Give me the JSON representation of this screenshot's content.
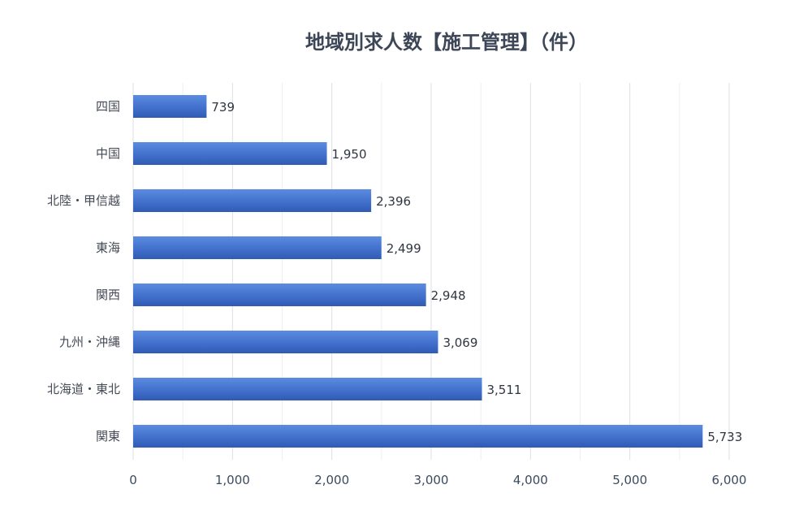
{
  "chart_data": {
    "type": "bar",
    "orientation": "horizontal",
    "title": "地域別求人数【施工管理】（件）",
    "xlabel": "",
    "ylabel": "",
    "categories": [
      "四国",
      "中国",
      "北陸・甲信越",
      "東海",
      "関西",
      "九州・沖縄",
      "北海道・東北",
      "関東"
    ],
    "values": [
      739,
      1950,
      2396,
      2499,
      2948,
      3069,
      3511,
      5733
    ],
    "data_labels": [
      "739",
      "1,950",
      "2,396",
      "2,499",
      "2,948",
      "3,069",
      "3,511",
      "5,733"
    ],
    "xlim": [
      0,
      6000
    ],
    "xticks": [
      0,
      1000,
      2000,
      3000,
      4000,
      5000,
      6000
    ],
    "xtick_labels": [
      "0",
      "1,000",
      "2,000",
      "3,000",
      "4,000",
      "5,000",
      "6,000"
    ],
    "grid": true,
    "legend": "none",
    "bar_color": "#4472c4"
  }
}
